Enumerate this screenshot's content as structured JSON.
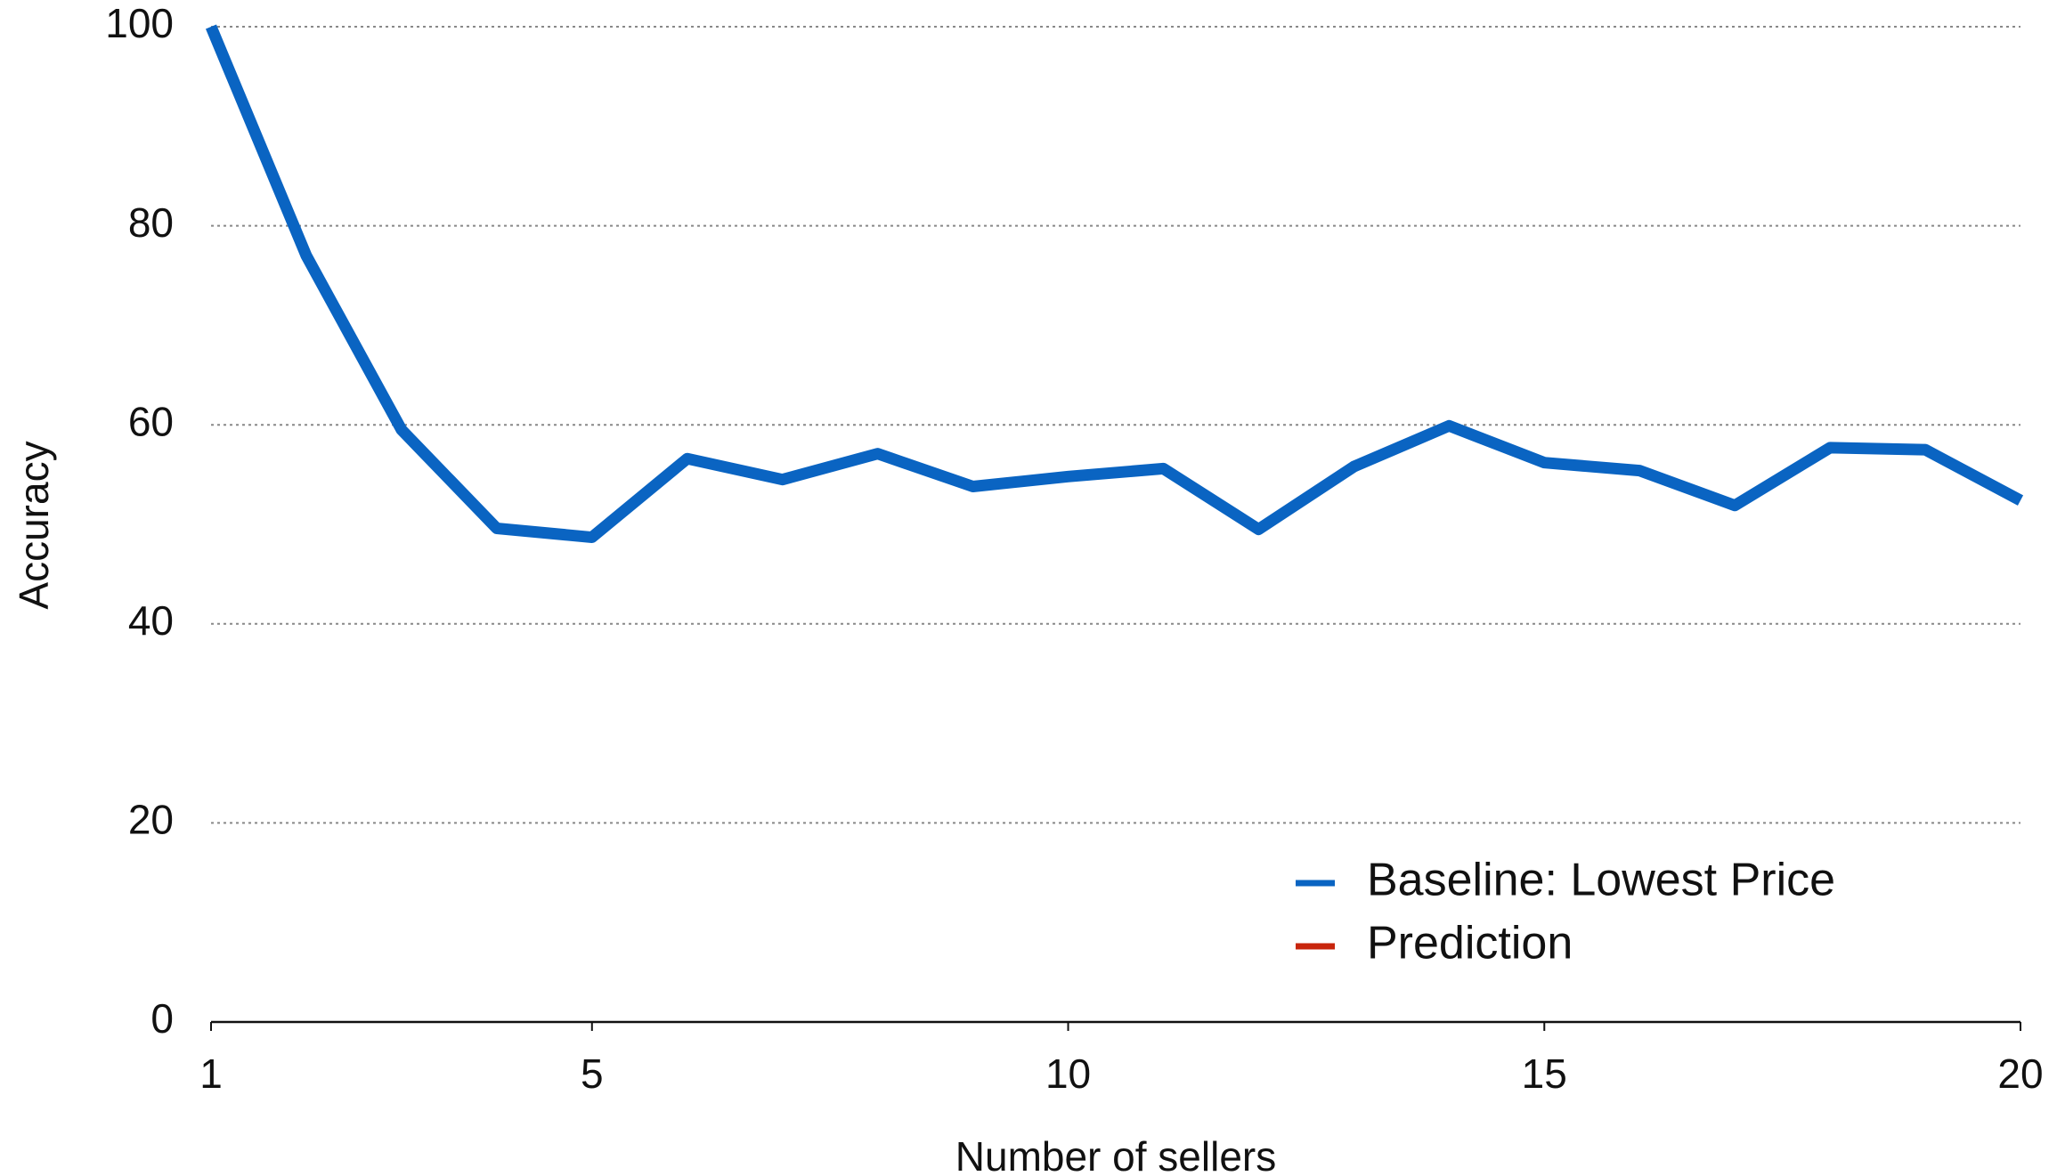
{
  "chart_data": {
    "type": "line",
    "x_label": "Number of sellers",
    "y_label": "Accuracy",
    "x": [
      1,
      2,
      3,
      4,
      5,
      6,
      7,
      8,
      9,
      10,
      11,
      12,
      13,
      14,
      15,
      16,
      17,
      18,
      19,
      20
    ],
    "series": [
      {
        "name": "Baseline: Lowest Price",
        "color": "#0a64c2",
        "values": [
          100,
          77,
          59.5,
          49.6,
          48.7,
          56.6,
          54.5,
          57.1,
          53.8,
          54.8,
          55.6,
          49.5,
          55.8,
          59.9,
          56.2,
          55.4,
          51.9,
          57.7,
          57.5,
          52.4
        ]
      },
      {
        "name": "Prediction",
        "color": "#c8250c",
        "values": [
          null,
          null,
          null,
          null,
          null,
          null,
          null,
          null,
          null,
          null,
          null,
          null,
          null,
          null,
          null,
          null,
          null,
          null,
          null,
          null
        ]
      }
    ],
    "xlim": [
      1,
      20
    ],
    "xticks": [
      1,
      5,
      10,
      15,
      20
    ],
    "ylim": [
      0,
      100
    ],
    "yticks": [
      0,
      20,
      40,
      60,
      80,
      100
    ],
    "grid": true,
    "legend": "lower right"
  }
}
